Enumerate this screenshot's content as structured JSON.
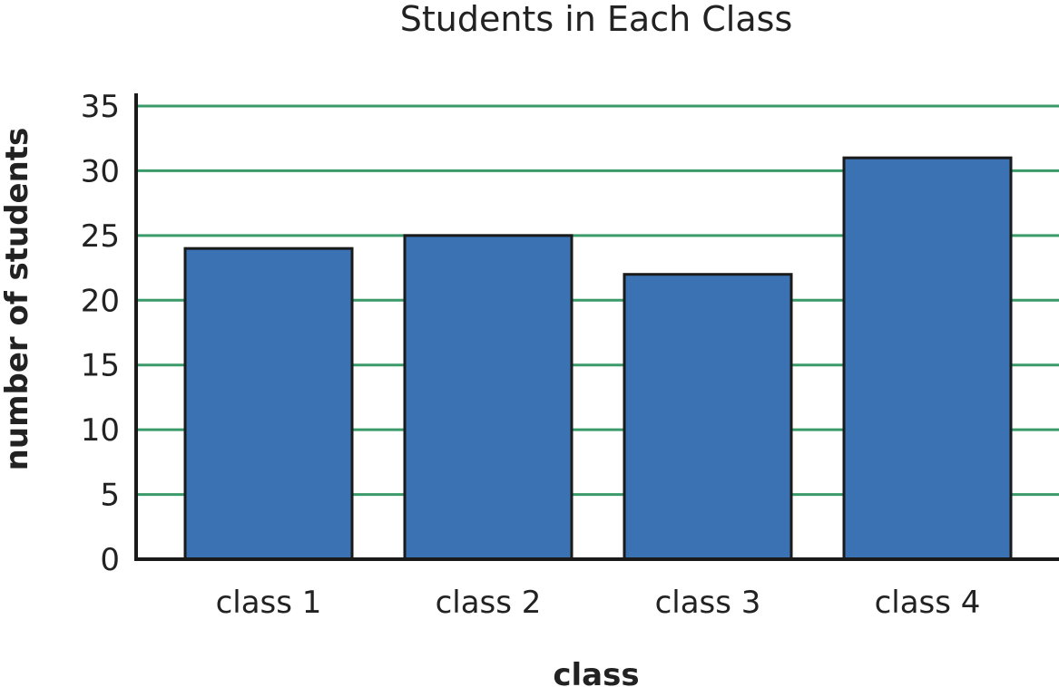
{
  "chart_data": {
    "type": "bar",
    "title": "Students in Each Class",
    "xlabel": "class",
    "ylabel": "number of students",
    "categories": [
      "class 1",
      "class 2",
      "class 3",
      "class 4"
    ],
    "values": [
      24,
      25,
      22,
      31
    ],
    "ylim": [
      0,
      35
    ],
    "yticks": [
      "0",
      "5",
      "10",
      "15",
      "20",
      "25",
      "30",
      "35"
    ],
    "grid": true,
    "legend": "none"
  },
  "colors": {
    "bar_fill": "#3b72b4",
    "bar_stroke": "#1a1a1a",
    "gridline": "#3a9a6a",
    "axis": "#1a1a1a",
    "text": "#222222"
  }
}
